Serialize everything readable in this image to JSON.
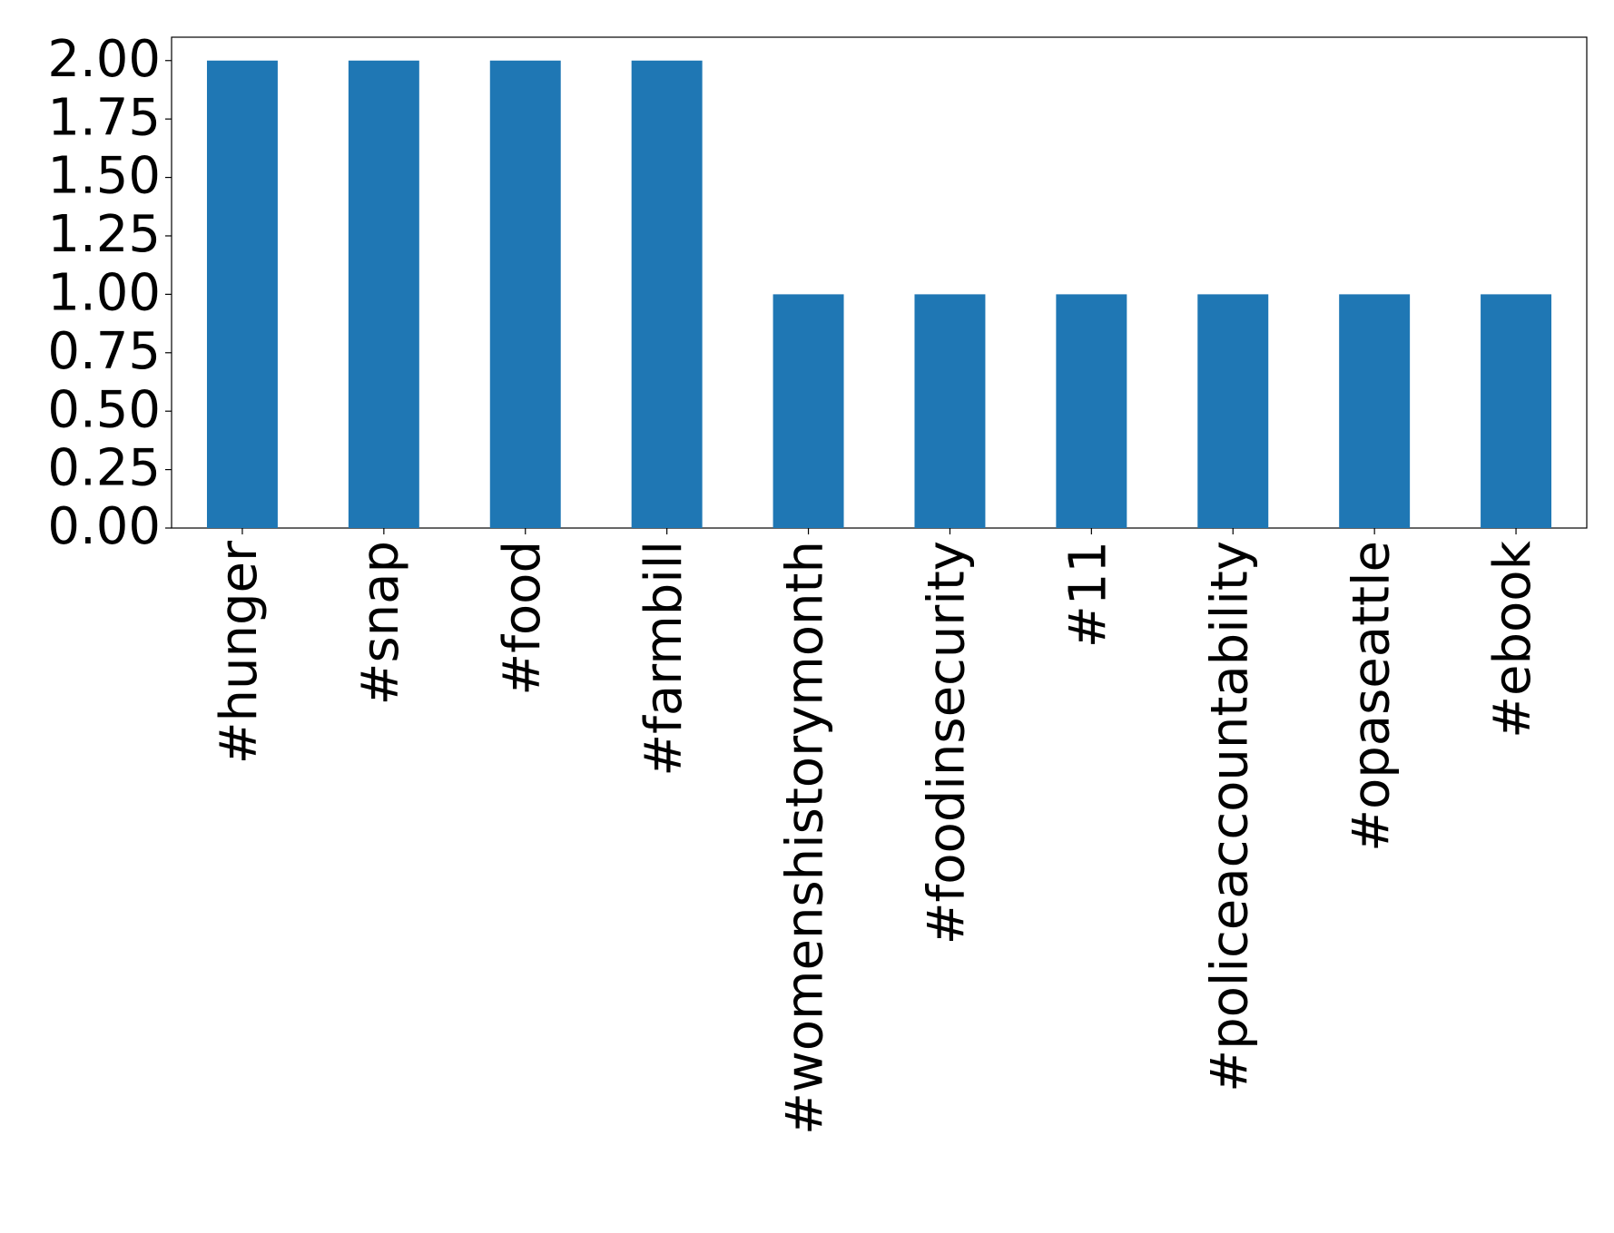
{
  "chart_data": {
    "type": "bar",
    "categories": [
      "#hunger",
      "#snap",
      "#food",
      "#farmbill",
      "#womenshistorymonth",
      "#foodinsecurity",
      "#11",
      "#policeaccountability",
      "#opaseattle",
      "#ebook"
    ],
    "values": [
      2,
      2,
      2,
      2,
      1,
      1,
      1,
      1,
      1,
      1
    ],
    "color": "#1f77b4",
    "ylim": [
      0,
      2.1
    ],
    "yticks": [
      {
        "value": 0,
        "label": "0.00"
      },
      {
        "value": 0.25,
        "label": "0.25"
      },
      {
        "value": 0.5,
        "label": "0.50"
      },
      {
        "value": 0.75,
        "label": "0.75"
      },
      {
        "value": 1,
        "label": "1.00"
      },
      {
        "value": 1.25,
        "label": "1.25"
      },
      {
        "value": 1.5,
        "label": "1.50"
      },
      {
        "value": 1.75,
        "label": "1.75"
      },
      {
        "value": 2,
        "label": "2.00"
      }
    ],
    "grid": false
  }
}
